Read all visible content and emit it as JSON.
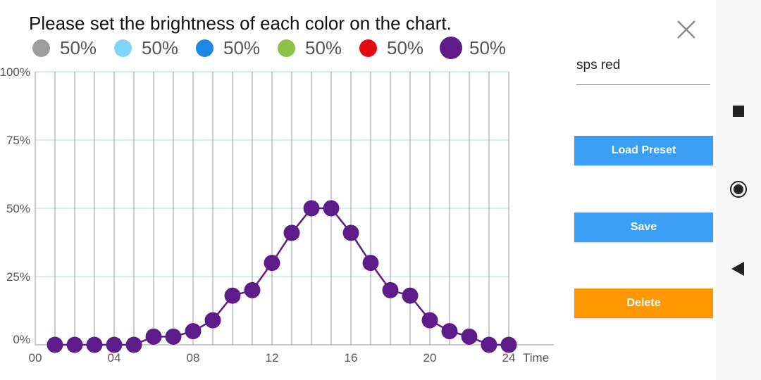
{
  "dialog": {
    "title": "Please set the brightness of each color on the chart.",
    "legend": [
      {
        "color": "#9e9e9e",
        "label": "50%"
      },
      {
        "color": "#81d4fa",
        "label": "50%"
      },
      {
        "color": "#1e88e5",
        "label": "50%"
      },
      {
        "color": "#8bc34a",
        "label": "50%"
      },
      {
        "color": "#e50914",
        "label": "50%"
      },
      {
        "color": "#5e1b8a",
        "label": "50%",
        "selected": true
      }
    ],
    "close_icon": "close-icon"
  },
  "preset": {
    "name_value": "sps red",
    "load_label": "Load Preset",
    "save_label": "Save",
    "delete_label": "Delete",
    "colors": {
      "load": "#3ba0f3",
      "save": "#3ba0f3",
      "delete": "#ff9800"
    }
  },
  "navigation": {
    "icons": [
      "square-icon",
      "circle-icon",
      "back-triangle-icon"
    ]
  },
  "chart_data": {
    "type": "line",
    "x_label": "Time",
    "y_ticks": [
      "100%",
      "75%",
      "50%",
      "25%",
      "0%"
    ],
    "x_ticks": [
      "00",
      "04",
      "08",
      "12",
      "16",
      "20",
      "24"
    ],
    "xlim": [
      0,
      24
    ],
    "ylim": [
      0,
      100
    ],
    "grid": true,
    "series": [
      {
        "color": "#5e1b8a",
        "x": [
          1,
          2,
          3,
          4,
          5,
          6,
          7,
          8,
          9,
          10,
          11,
          12,
          13,
          14,
          15,
          16,
          17,
          18,
          19,
          20,
          21,
          22,
          23,
          24
        ],
        "values": [
          0,
          0,
          0,
          0,
          0,
          3,
          3,
          5,
          9,
          18,
          20,
          30,
          41,
          50,
          50,
          41,
          30,
          20,
          18,
          9,
          5,
          3,
          0,
          0
        ]
      }
    ]
  }
}
